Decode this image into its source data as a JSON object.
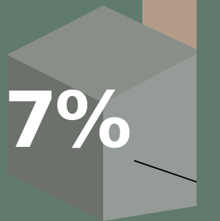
{
  "label": "7%"
}
